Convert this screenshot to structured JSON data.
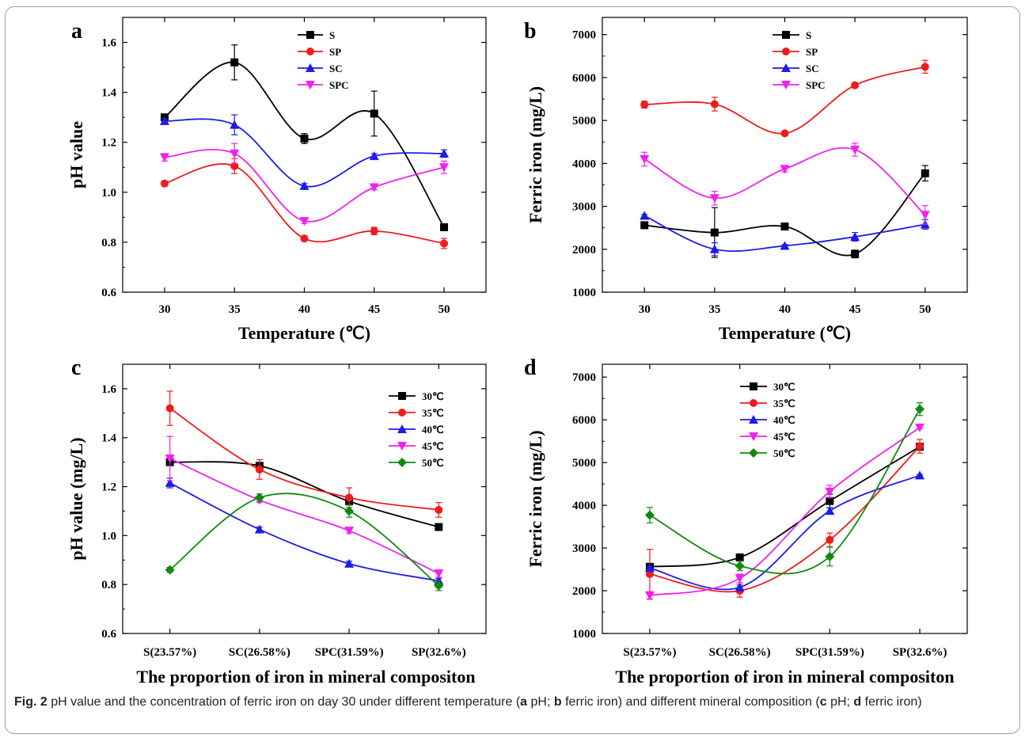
{
  "caption": {
    "label": "Fig. 2",
    "parts": [
      {
        "t": " pH value and the concentration of ferric iron on day 30 under different temperature (",
        "b": false
      },
      {
        "t": "a",
        "b": true
      },
      {
        "t": " pH; ",
        "b": false
      },
      {
        "t": "b",
        "b": true
      },
      {
        "t": " ferric iron) and different mineral composition (",
        "b": false
      },
      {
        "t": "c",
        "b": true
      },
      {
        "t": " pH; ",
        "b": false
      },
      {
        "t": "d",
        "b": true
      },
      {
        "t": " ferric iron)",
        "b": false
      }
    ]
  },
  "colors": {
    "black": "#000000",
    "red": "#ee1c1c",
    "blue": "#1c1ce8",
    "magenta": "#ee22ee",
    "green": "#118811"
  },
  "chart_data": [
    {
      "panel": "a",
      "type": "line",
      "xlabel": "Temperature (℃)",
      "ylabel": "pH value",
      "x": [
        30,
        35,
        40,
        45,
        50
      ],
      "xlim": [
        27,
        53
      ],
      "ylim": [
        0.6,
        1.7
      ],
      "yticks": [
        0.6,
        0.8,
        1.0,
        1.2,
        1.4,
        1.6
      ],
      "ytick_labels": [
        "0.6",
        "0.8",
        "1.0",
        "1.2",
        "1.4",
        "1.6"
      ],
      "legend_position": "top-center",
      "series": [
        {
          "name": "S",
          "color": "black",
          "marker": "square",
          "values": [
            1.3,
            1.52,
            1.215,
            1.315,
            0.86
          ],
          "errors": [
            0.01,
            0.07,
            0.02,
            0.09,
            0.01
          ]
        },
        {
          "name": "SP",
          "color": "red",
          "marker": "circle",
          "values": [
            1.035,
            1.105,
            0.815,
            0.845,
            0.795
          ],
          "errors": [
            0.01,
            0.03,
            0.01,
            0.015,
            0.02
          ]
        },
        {
          "name": "SC",
          "color": "blue",
          "marker": "triangle-up",
          "values": [
            1.285,
            1.27,
            1.025,
            1.145,
            1.155
          ],
          "errors": [
            0.01,
            0.04,
            0.01,
            0.01,
            0.015
          ]
        },
        {
          "name": "SPC",
          "color": "magenta",
          "marker": "triangle-down",
          "values": [
            1.14,
            1.155,
            0.885,
            1.02,
            1.1
          ],
          "errors": [
            0.015,
            0.04,
            0.01,
            0.01,
            0.025
          ]
        }
      ]
    },
    {
      "panel": "b",
      "type": "line",
      "xlabel": "Temperature (℃)",
      "ylabel": "Ferric iron (mg/L)",
      "x": [
        30,
        35,
        40,
        45,
        50
      ],
      "xlim": [
        27,
        53
      ],
      "ylim": [
        1000,
        7400
      ],
      "yticks": [
        1000,
        2000,
        3000,
        4000,
        5000,
        6000,
        7000
      ],
      "ytick_labels": [
        "1000",
        "2000",
        "3000",
        "4000",
        "5000",
        "6000",
        "7000"
      ],
      "legend_position": "top-right",
      "series": [
        {
          "name": "S",
          "color": "black",
          "marker": "square",
          "values": [
            2560,
            2390,
            2530,
            1890,
            3770
          ],
          "errors": [
            30,
            580,
            30,
            90,
            180
          ]
        },
        {
          "name": "SP",
          "color": "red",
          "marker": "circle",
          "values": [
            5370,
            5380,
            4700,
            5820,
            6250
          ],
          "errors": [
            80,
            160,
            20,
            30,
            150
          ]
        },
        {
          "name": "SC",
          "color": "blue",
          "marker": "triangle-up",
          "values": [
            2780,
            2000,
            2080,
            2290,
            2580
          ],
          "errors": [
            30,
            150,
            30,
            100,
            110
          ]
        },
        {
          "name": "SPC",
          "color": "magenta",
          "marker": "triangle-down",
          "values": [
            4100,
            3190,
            3870,
            4320,
            2800
          ],
          "errors": [
            160,
            160,
            70,
            150,
            220
          ]
        }
      ]
    },
    {
      "panel": "c",
      "type": "line",
      "xlabel": "The proportion of iron in mineral compositon",
      "ylabel": "pH value (mg/L)",
      "categories": [
        "S(23.57%)",
        "SC(26.58%)",
        "SPC(31.59%)",
        "SP(32.6%)"
      ],
      "ylim": [
        0.6,
        1.7
      ],
      "yticks": [
        0.6,
        0.8,
        1.0,
        1.2,
        1.4,
        1.6
      ],
      "ytick_labels": [
        "0.6",
        "0.8",
        "1.0",
        "1.2",
        "1.4",
        "1.6"
      ],
      "legend_position": "top-right",
      "series": [
        {
          "name": "30℃",
          "color": "black",
          "marker": "square",
          "values": [
            1.3,
            1.285,
            1.14,
            1.035
          ],
          "errors": [
            0.01,
            0.01,
            0.015,
            0.01
          ]
        },
        {
          "name": "35℃",
          "color": "red",
          "marker": "circle",
          "values": [
            1.52,
            1.27,
            1.155,
            1.105
          ],
          "errors": [
            0.07,
            0.04,
            0.04,
            0.03
          ]
        },
        {
          "name": "40℃",
          "color": "blue",
          "marker": "triangle-up",
          "values": [
            1.215,
            1.025,
            0.885,
            0.815
          ],
          "errors": [
            0.02,
            0.01,
            0.01,
            0.01
          ]
        },
        {
          "name": "45℃",
          "color": "magenta",
          "marker": "triangle-down",
          "values": [
            1.315,
            1.145,
            1.02,
            0.845
          ],
          "errors": [
            0.09,
            0.01,
            0.01,
            0.015
          ]
        },
        {
          "name": "50℃",
          "color": "green",
          "marker": "diamond",
          "values": [
            0.86,
            1.155,
            1.1,
            0.795
          ],
          "errors": [
            0.01,
            0.015,
            0.025,
            0.02
          ]
        }
      ]
    },
    {
      "panel": "d",
      "type": "line",
      "xlabel": "The proportion of iron in mineral compositon",
      "ylabel": "Ferric iron (mg/L)",
      "categories": [
        "S(23.57%)",
        "SC(26.58%)",
        "SPC(31.59%)",
        "SP(32.6%)"
      ],
      "ylim": [
        1000,
        7300
      ],
      "yticks": [
        1000,
        2000,
        3000,
        4000,
        5000,
        6000,
        7000
      ],
      "ytick_labels": [
        "1000",
        "2000",
        "3000",
        "4000",
        "5000",
        "6000",
        "7000"
      ],
      "legend_position": "top-center",
      "series": [
        {
          "name": "30℃",
          "color": "black",
          "marker": "square",
          "values": [
            2560,
            2780,
            4100,
            5370
          ],
          "errors": [
            30,
            30,
            160,
            80
          ]
        },
        {
          "name": "35℃",
          "color": "red",
          "marker": "circle",
          "values": [
            2390,
            2000,
            3190,
            5380
          ],
          "errors": [
            580,
            150,
            160,
            160
          ]
        },
        {
          "name": "40℃",
          "color": "blue",
          "marker": "triangle-up",
          "values": [
            2530,
            2080,
            3870,
            4700
          ],
          "errors": [
            30,
            30,
            70,
            20
          ]
        },
        {
          "name": "45℃",
          "color": "magenta",
          "marker": "triangle-down",
          "values": [
            1890,
            2290,
            4320,
            5820
          ],
          "errors": [
            90,
            100,
            150,
            30
          ]
        },
        {
          "name": "50℃",
          "color": "green",
          "marker": "diamond",
          "values": [
            3770,
            2580,
            2800,
            6250
          ],
          "errors": [
            180,
            110,
            220,
            150
          ]
        }
      ]
    }
  ]
}
